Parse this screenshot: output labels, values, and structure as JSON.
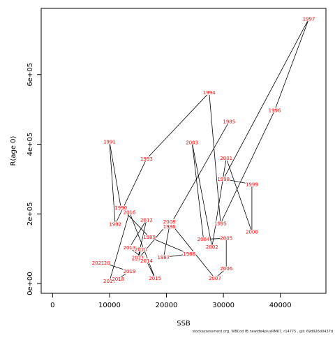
{
  "footer": "stockassessment.org, WBCod IB newide4plusRM67, r14775 , git: 69d926d0437d",
  "chart_data": {
    "type": "line",
    "xlabel": "SSB",
    "ylabel": "R(age 0)",
    "xlim": [
      -2000,
      48000
    ],
    "ylim": [
      -28000,
      790000
    ],
    "xticks": [
      0,
      10000,
      20000,
      30000,
      40000
    ],
    "yticks": [
      0,
      200000,
      400000,
      600000
    ],
    "ytick_labels": [
      "0e+00",
      "2e+05",
      "4e+05",
      "6e+05"
    ],
    "line_color": "#000000",
    "label_color": "#ff0000",
    "points": [
      {
        "year": "1985",
        "x": 31000,
        "y": 465000
      },
      {
        "year": "1986",
        "x": 20500,
        "y": 163000
      },
      {
        "year": "1987",
        "x": 19500,
        "y": 75000
      },
      {
        "year": "1988",
        "x": 24000,
        "y": 85000
      },
      {
        "year": "1989",
        "x": 17000,
        "y": 133000
      },
      {
        "year": "1990",
        "x": 12000,
        "y": 218000
      },
      {
        "year": "1991",
        "x": 10000,
        "y": 407000
      },
      {
        "year": "1992",
        "x": 11000,
        "y": 170000
      },
      {
        "year": "1993",
        "x": 16500,
        "y": 358000
      },
      {
        "year": "1994",
        "x": 27500,
        "y": 548000
      },
      {
        "year": "1995",
        "x": 29500,
        "y": 172000
      },
      {
        "year": "1996",
        "x": 39000,
        "y": 497000
      },
      {
        "year": "1997",
        "x": 45000,
        "y": 760000
      },
      {
        "year": "1998",
        "x": 30000,
        "y": 300000
      },
      {
        "year": "1999",
        "x": 35000,
        "y": 285000
      },
      {
        "year": "2000",
        "x": 35000,
        "y": 148000
      },
      {
        "year": "2001",
        "x": 30500,
        "y": 360000
      },
      {
        "year": "2002",
        "x": 28000,
        "y": 105000
      },
      {
        "year": "2003",
        "x": 24500,
        "y": 405000
      },
      {
        "year": "2004",
        "x": 26500,
        "y": 127000
      },
      {
        "year": "2005",
        "x": 30500,
        "y": 130000
      },
      {
        "year": "2006",
        "x": 30500,
        "y": 43000
      },
      {
        "year": "2007",
        "x": 28500,
        "y": 15000
      },
      {
        "year": "2008",
        "x": 20500,
        "y": 178000
      },
      {
        "year": "2009",
        "x": 15000,
        "y": 70000
      },
      {
        "year": "2010",
        "x": 15500,
        "y": 98000
      },
      {
        "year": "2011",
        "x": 15000,
        "y": 74000
      },
      {
        "year": "2012",
        "x": 16500,
        "y": 183000
      },
      {
        "year": "2013",
        "x": 13500,
        "y": 103000
      },
      {
        "year": "2014",
        "x": 16500,
        "y": 65000
      },
      {
        "year": "2015",
        "x": 18000,
        "y": 15000
      },
      {
        "year": "2016",
        "x": 13500,
        "y": 205000
      },
      {
        "year": "2017",
        "x": 10000,
        "y": 7000
      },
      {
        "year": "2018",
        "x": 11500,
        "y": 13000
      },
      {
        "year": "2019",
        "x": 13500,
        "y": 35000
      },
      {
        "year": "2020",
        "x": 9000,
        "y": 59000
      },
      {
        "year": "2021",
        "x": 8000,
        "y": 59000
      }
    ]
  }
}
